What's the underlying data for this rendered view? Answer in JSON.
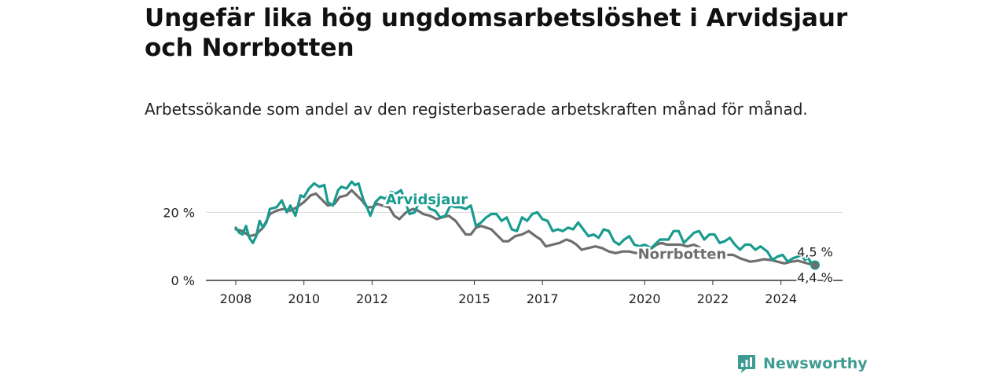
{
  "title": "Ungefär lika hög ungdomsarbetslöshet i Arvidsjaur och Norrbotten",
  "subtitle": "Arbetssökande som andel av den registerbaserade arbetskraften månad för månad.",
  "brand": {
    "name": "Newsworthy",
    "icon": "newsworthy-logo-icon"
  },
  "colors": {
    "arvidsjaur": "#1a9b8f",
    "norrbotten": "#6e6e6e",
    "grid": "#d9d9d9",
    "axis": "#333333"
  },
  "chart_data": {
    "type": "line",
    "title": "Ungefär lika hög ungdomsarbetslöshet i Arvidsjaur och Norrbotten",
    "subtitle": "Arbetssökande som andel av den registerbaserade arbetskraften månad för månad.",
    "x_unit": "year (fractional, monthly)",
    "xlim": [
      2008,
      2025
    ],
    "ylim": [
      0,
      30
    ],
    "y_ticks": [
      0,
      20
    ],
    "y_tick_labels": [
      "0 %",
      "20 %"
    ],
    "x_ticks": [
      2008,
      2010,
      2012,
      2015,
      2017,
      2020,
      2022,
      2024
    ],
    "x_tick_labels": [
      "2008",
      "2010",
      "2012",
      "2015",
      "2017",
      "2020",
      "2022",
      "2024"
    ],
    "grid": "horizontal",
    "legend": "direct labels on lines",
    "series": [
      {
        "name": "Arvidsjaur",
        "color": "#1a9b8f",
        "label_at": 2012.4,
        "end_label": "4,5 %",
        "points": [
          [
            2008.0,
            15.5
          ],
          [
            2008.1,
            14.0
          ],
          [
            2008.2,
            13.5
          ],
          [
            2008.3,
            16.0
          ],
          [
            2008.4,
            12.5
          ],
          [
            2008.5,
            11.0
          ],
          [
            2008.6,
            13.0
          ],
          [
            2008.7,
            17.5
          ],
          [
            2008.8,
            15.5
          ],
          [
            2008.9,
            17.0
          ],
          [
            2009.0,
            21.0
          ],
          [
            2009.2,
            21.5
          ],
          [
            2009.35,
            23.5
          ],
          [
            2009.5,
            20.0
          ],
          [
            2009.6,
            22.0
          ],
          [
            2009.75,
            19.0
          ],
          [
            2009.9,
            25.0
          ],
          [
            2010.0,
            24.5
          ],
          [
            2010.15,
            27.0
          ],
          [
            2010.3,
            28.5
          ],
          [
            2010.45,
            27.5
          ],
          [
            2010.6,
            28.0
          ],
          [
            2010.7,
            23.0
          ],
          [
            2010.85,
            22.0
          ],
          [
            2011.0,
            26.5
          ],
          [
            2011.1,
            27.5
          ],
          [
            2011.25,
            27.0
          ],
          [
            2011.4,
            29.0
          ],
          [
            2011.5,
            28.0
          ],
          [
            2011.6,
            28.5
          ],
          [
            2011.75,
            23.5
          ],
          [
            2011.85,
            21.5
          ],
          [
            2011.95,
            19.0
          ],
          [
            2012.1,
            23.0
          ],
          [
            2012.25,
            24.5
          ],
          [
            2012.4,
            24.0
          ],
          [
            2012.55,
            26.0
          ],
          [
            2012.7,
            25.5
          ],
          [
            2012.85,
            26.5
          ],
          [
            2013.0,
            22.5
          ],
          [
            2013.1,
            19.5
          ],
          [
            2013.25,
            20.0
          ],
          [
            2013.4,
            23.5
          ],
          [
            2013.55,
            23.5
          ],
          [
            2013.7,
            21.0
          ],
          [
            2013.85,
            20.5
          ],
          [
            2014.0,
            18.5
          ],
          [
            2014.15,
            19.0
          ],
          [
            2014.3,
            22.0
          ],
          [
            2014.45,
            21.5
          ],
          [
            2014.6,
            21.5
          ],
          [
            2014.75,
            21.0
          ],
          [
            2014.9,
            22.0
          ],
          [
            2015.05,
            16.0
          ],
          [
            2015.2,
            17.0
          ],
          [
            2015.35,
            18.5
          ],
          [
            2015.5,
            19.5
          ],
          [
            2015.65,
            19.5
          ],
          [
            2015.8,
            17.5
          ],
          [
            2015.95,
            18.5
          ],
          [
            2016.1,
            15.0
          ],
          [
            2016.25,
            14.5
          ],
          [
            2016.4,
            18.5
          ],
          [
            2016.55,
            17.5
          ],
          [
            2016.7,
            19.5
          ],
          [
            2016.85,
            20.0
          ],
          [
            2017.0,
            18.0
          ],
          [
            2017.15,
            17.5
          ],
          [
            2017.3,
            14.5
          ],
          [
            2017.45,
            15.0
          ],
          [
            2017.6,
            14.5
          ],
          [
            2017.75,
            15.5
          ],
          [
            2017.9,
            15.0
          ],
          [
            2018.05,
            17.0
          ],
          [
            2018.2,
            15.0
          ],
          [
            2018.35,
            13.0
          ],
          [
            2018.5,
            13.5
          ],
          [
            2018.65,
            12.5
          ],
          [
            2018.8,
            15.0
          ],
          [
            2018.95,
            14.5
          ],
          [
            2019.1,
            11.5
          ],
          [
            2019.25,
            10.5
          ],
          [
            2019.4,
            12.0
          ],
          [
            2019.55,
            13.0
          ],
          [
            2019.7,
            10.5
          ],
          [
            2019.85,
            10.0
          ],
          [
            2020.0,
            10.5
          ],
          [
            2020.2,
            9.5
          ],
          [
            2020.45,
            12.0
          ],
          [
            2020.7,
            12.0
          ],
          [
            2020.85,
            14.5
          ],
          [
            2021.0,
            14.5
          ],
          [
            2021.15,
            11.0
          ],
          [
            2021.3,
            12.5
          ],
          [
            2021.45,
            14.0
          ],
          [
            2021.6,
            14.5
          ],
          [
            2021.75,
            12.0
          ],
          [
            2021.9,
            13.5
          ],
          [
            2022.05,
            13.5
          ],
          [
            2022.2,
            11.0
          ],
          [
            2022.35,
            11.5
          ],
          [
            2022.5,
            12.5
          ],
          [
            2022.65,
            10.5
          ],
          [
            2022.8,
            9.0
          ],
          [
            2022.95,
            10.5
          ],
          [
            2023.1,
            10.5
          ],
          [
            2023.25,
            9.0
          ],
          [
            2023.4,
            10.0
          ],
          [
            2023.6,
            8.5
          ],
          [
            2023.75,
            6.0
          ],
          [
            2023.9,
            7.0
          ],
          [
            2024.05,
            7.5
          ],
          [
            2024.2,
            5.5
          ],
          [
            2024.35,
            6.5
          ],
          [
            2024.5,
            7.0
          ],
          [
            2024.6,
            7.5
          ],
          [
            2024.7,
            6.0
          ],
          [
            2024.8,
            6.5
          ],
          [
            2024.9,
            5.0
          ],
          [
            2025.0,
            4.5
          ]
        ]
      },
      {
        "name": "Norrbotten",
        "color": "#6e6e6e",
        "label_at": 2019.8,
        "end_label": "4,4 %",
        "points": [
          [
            2008.0,
            15.0
          ],
          [
            2008.2,
            14.5
          ],
          [
            2008.4,
            13.0
          ],
          [
            2008.6,
            13.5
          ],
          [
            2008.8,
            15.5
          ],
          [
            2009.0,
            19.5
          ],
          [
            2009.2,
            20.5
          ],
          [
            2009.4,
            21.0
          ],
          [
            2009.6,
            20.5
          ],
          [
            2009.8,
            21.5
          ],
          [
            2010.0,
            23.0
          ],
          [
            2010.2,
            25.0
          ],
          [
            2010.35,
            25.5
          ],
          [
            2010.5,
            24.0
          ],
          [
            2010.7,
            22.0
          ],
          [
            2010.9,
            22.5
          ],
          [
            2011.05,
            24.5
          ],
          [
            2011.25,
            25.0
          ],
          [
            2011.4,
            26.5
          ],
          [
            2011.55,
            25.0
          ],
          [
            2011.7,
            23.5
          ],
          [
            2011.85,
            21.5
          ],
          [
            2012.0,
            21.5
          ],
          [
            2012.15,
            22.5
          ],
          [
            2012.3,
            22.0
          ],
          [
            2012.5,
            21.5
          ],
          [
            2012.65,
            19.0
          ],
          [
            2012.8,
            18.0
          ],
          [
            2013.0,
            20.0
          ],
          [
            2013.2,
            21.0
          ],
          [
            2013.35,
            20.5
          ],
          [
            2013.5,
            19.5
          ],
          [
            2013.7,
            19.0
          ],
          [
            2013.9,
            18.0
          ],
          [
            2014.05,
            18.5
          ],
          [
            2014.25,
            19.0
          ],
          [
            2014.45,
            17.5
          ],
          [
            2014.6,
            15.5
          ],
          [
            2014.75,
            13.5
          ],
          [
            2014.9,
            13.5
          ],
          [
            2015.05,
            15.5
          ],
          [
            2015.2,
            16.0
          ],
          [
            2015.35,
            15.5
          ],
          [
            2015.5,
            15.0
          ],
          [
            2015.7,
            13.0
          ],
          [
            2015.85,
            11.5
          ],
          [
            2016.0,
            11.5
          ],
          [
            2016.2,
            13.0
          ],
          [
            2016.4,
            13.5
          ],
          [
            2016.6,
            14.5
          ],
          [
            2016.8,
            13.0
          ],
          [
            2016.95,
            12.0
          ],
          [
            2017.1,
            10.0
          ],
          [
            2017.3,
            10.5
          ],
          [
            2017.5,
            11.0
          ],
          [
            2017.7,
            12.0
          ],
          [
            2017.85,
            11.5
          ],
          [
            2018.0,
            10.5
          ],
          [
            2018.15,
            9.0
          ],
          [
            2018.35,
            9.5
          ],
          [
            2018.55,
            10.0
          ],
          [
            2018.75,
            9.5
          ],
          [
            2018.95,
            8.5
          ],
          [
            2019.15,
            8.0
          ],
          [
            2019.35,
            8.5
          ],
          [
            2019.55,
            8.5
          ],
          [
            2019.75,
            8.0
          ],
          [
            2019.95,
            8.5
          ],
          [
            2020.15,
            9.0
          ],
          [
            2020.35,
            10.5
          ],
          [
            2020.5,
            11.0
          ],
          [
            2020.65,
            10.5
          ],
          [
            2020.85,
            10.5
          ],
          [
            2021.05,
            10.5
          ],
          [
            2021.25,
            10.0
          ],
          [
            2021.45,
            10.5
          ],
          [
            2021.65,
            9.5
          ],
          [
            2021.8,
            8.0
          ],
          [
            2022.0,
            7.5
          ],
          [
            2022.2,
            7.5
          ],
          [
            2022.4,
            7.5
          ],
          [
            2022.6,
            7.5
          ],
          [
            2022.8,
            6.5
          ],
          [
            2022.95,
            6.0
          ],
          [
            2023.1,
            5.5
          ],
          [
            2023.3,
            5.8
          ],
          [
            2023.5,
            6.2
          ],
          [
            2023.7,
            6.0
          ],
          [
            2023.9,
            5.5
          ],
          [
            2024.1,
            5.0
          ],
          [
            2024.3,
            5.5
          ],
          [
            2024.5,
            5.8
          ],
          [
            2024.7,
            5.2
          ],
          [
            2024.85,
            4.8
          ],
          [
            2025.0,
            4.4
          ]
        ]
      }
    ]
  }
}
